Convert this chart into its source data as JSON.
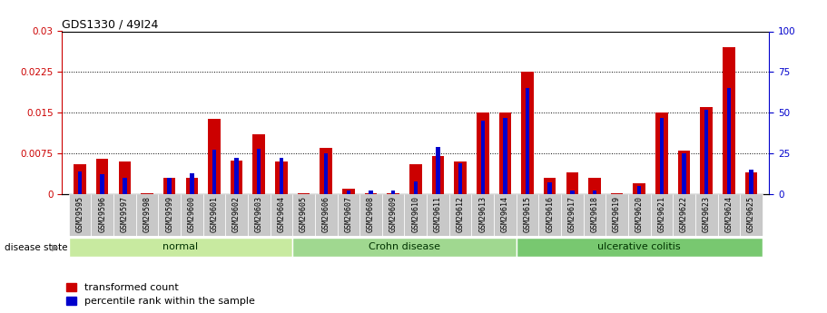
{
  "title": "GDS1330 / 49I24",
  "samples": [
    "GSM29595",
    "GSM29596",
    "GSM29597",
    "GSM29598",
    "GSM29599",
    "GSM29600",
    "GSM29601",
    "GSM29602",
    "GSM29603",
    "GSM29604",
    "GSM29605",
    "GSM29606",
    "GSM29607",
    "GSM29608",
    "GSM29609",
    "GSM29610",
    "GSM29611",
    "GSM29612",
    "GSM29613",
    "GSM29614",
    "GSM29615",
    "GSM29616",
    "GSM29617",
    "GSM29618",
    "GSM29619",
    "GSM29620",
    "GSM29621",
    "GSM29622",
    "GSM29623",
    "GSM29624",
    "GSM29625"
  ],
  "red_values": [
    0.0055,
    0.0065,
    0.006,
    0.0001,
    0.003,
    0.003,
    0.0138,
    0.0062,
    0.011,
    0.006,
    0.0001,
    0.0085,
    0.001,
    0.0001,
    0.0001,
    0.0055,
    0.007,
    0.006,
    0.015,
    0.015,
    0.0225,
    0.003,
    0.004,
    0.003,
    0.0001,
    0.002,
    0.015,
    0.008,
    0.016,
    0.027,
    0.004
  ],
  "blue_values": [
    14,
    12,
    10,
    0,
    10,
    13,
    27,
    22,
    28,
    22,
    0,
    25,
    2,
    2,
    2,
    8,
    29,
    19,
    45,
    47,
    65,
    7,
    2,
    2,
    0,
    5,
    47,
    25,
    52,
    65,
    15
  ],
  "groups": [
    {
      "label": "normal",
      "start": 0,
      "end": 10,
      "color": "#c8eaa0"
    },
    {
      "label": "Crohn disease",
      "start": 10,
      "end": 20,
      "color": "#a0d890"
    },
    {
      "label": "ulcerative colitis",
      "start": 20,
      "end": 31,
      "color": "#78c870"
    }
  ],
  "ylim_left": [
    0,
    0.03
  ],
  "ylim_right": [
    0,
    100
  ],
  "yticks_left": [
    0,
    0.0075,
    0.015,
    0.0225,
    0.03
  ],
  "yticks_right": [
    0,
    25,
    50,
    75,
    100
  ],
  "left_color": "#cc0000",
  "right_color": "#0000cc",
  "red_bar_width": 0.55,
  "blue_bar_width": 0.18,
  "background_color": "#ffffff",
  "legend_red": "transformed count",
  "legend_blue": "percentile rank within the sample",
  "disease_state_label": "disease state"
}
